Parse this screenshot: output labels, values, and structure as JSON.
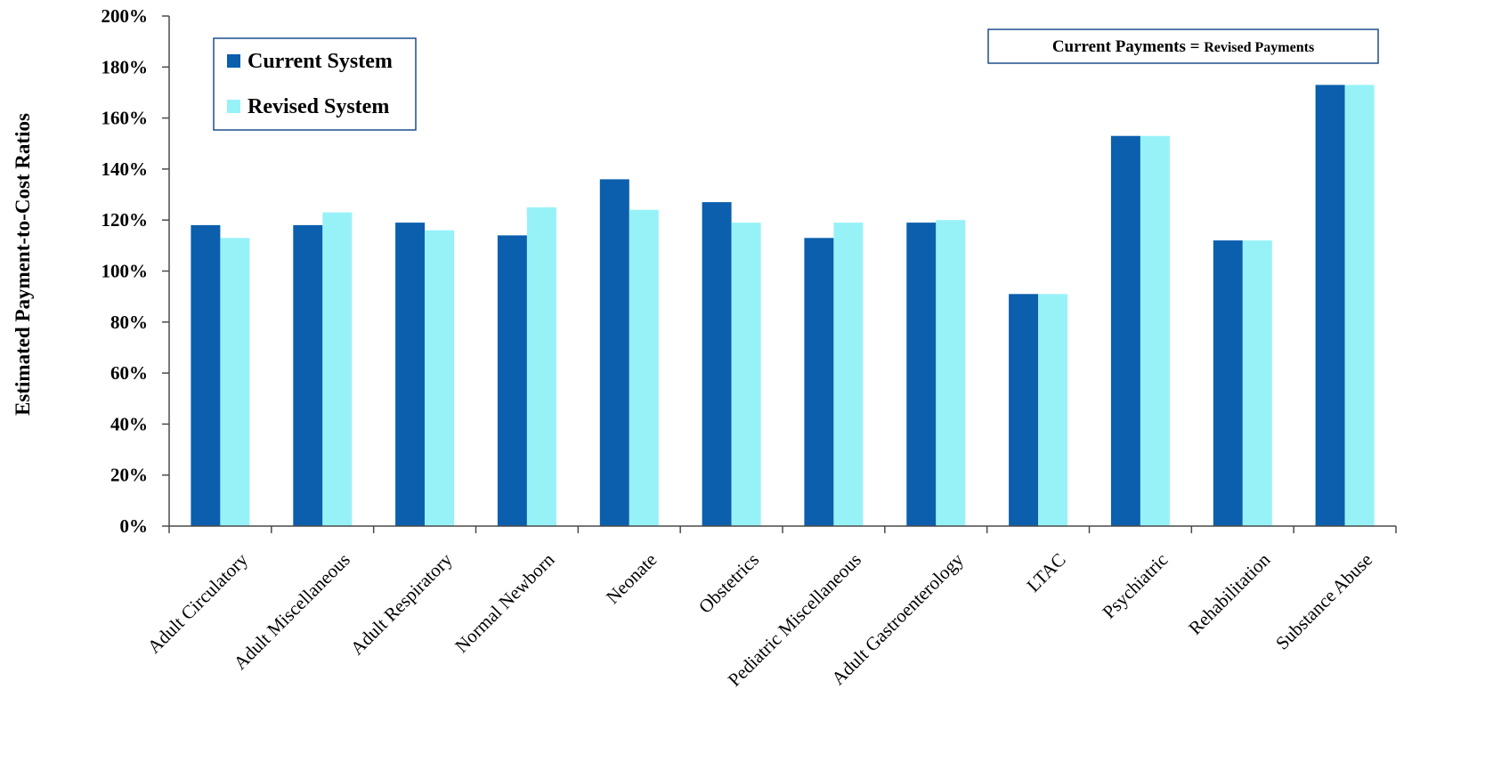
{
  "chart_data": {
    "type": "bar",
    "ylabel": "Estimated Payment-to-Cost Ratios",
    "xlabel": "",
    "ylim": [
      0,
      200
    ],
    "y_ticks": [
      "0%",
      "20%",
      "40%",
      "60%",
      "80%",
      "100%",
      "120%",
      "140%",
      "160%",
      "180%",
      "200%"
    ],
    "grid": false,
    "legend_position": "top-left",
    "categories": [
      "Adult Circulatory",
      "Adult Miscellaneous",
      "Adult Respiratory",
      "Normal Newborn",
      "Neonate",
      "Obstetrics",
      "Pediatric Miscellaneous",
      "Adult Gastroenterology",
      "LTAC",
      "Psychiatric",
      "Rehabilitation",
      "Substance Abuse"
    ],
    "series": [
      {
        "name": "Current System",
        "color": "#0b5fad",
        "values": [
          118,
          118,
          119,
          114,
          136,
          127,
          113,
          119,
          91,
          153,
          112,
          173
        ]
      },
      {
        "name": "Revised System",
        "color": "#97f2f8",
        "values": [
          113,
          123,
          116,
          125,
          124,
          119,
          119,
          120,
          91,
          153,
          112,
          173
        ]
      }
    ],
    "annotation": {
      "main": "Current Payments",
      "equals": " = ",
      "small": "Revised Payments"
    }
  },
  "colors": {
    "axis": "#4a4a4a",
    "box_border": "#1f4e8c"
  }
}
